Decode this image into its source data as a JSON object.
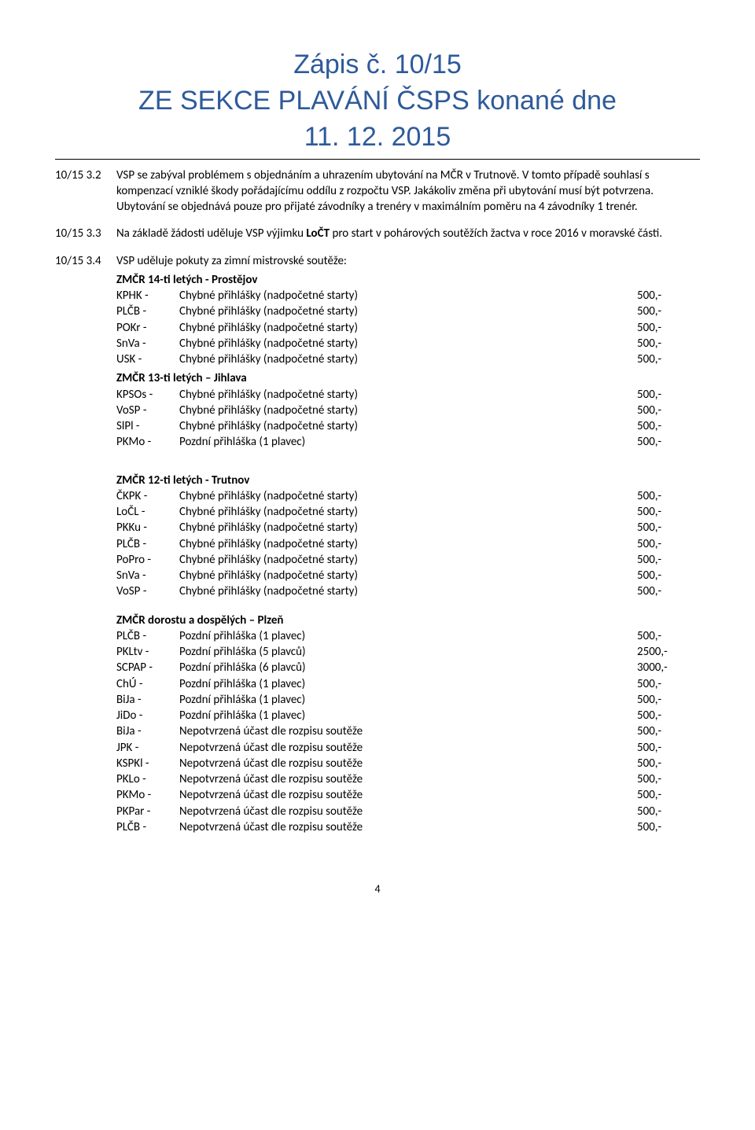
{
  "title": {
    "line1": "Zápis č. 10/15",
    "line2": "ZE SEKCE PLAVÁNÍ ČSPS konané dne",
    "line3": "11. 12. 2015"
  },
  "items": [
    {
      "num": "10/15 3.2",
      "text": "VSP se zabýval problémem s objednáním a uhrazením ubytování na MČR v Trutnově. V tomto případě souhlasí s kompenzací vzniklé škody pořádajícímu oddílu z rozpočtu VSP. Jakákoliv změna při ubytování musí být potvrzena. Ubytování se objednává pouze pro přijaté závodníky a trenéry v maximálním poměru na 4 závodníky 1 trenér."
    },
    {
      "num": "10/15 3.3",
      "text": "Na základě žádosti uděluje VSP výjimku LoČT pro start v pohárových soutěžích žactva v roce 2016 v moravské části.",
      "bold_run": "LoČT"
    },
    {
      "num": "10/15 3.4",
      "text": "VSP uděluje pokuty za zimní mistrovské soutěže:"
    }
  ],
  "groups": [
    {
      "heading": "ZMČR 14-ti letých - Prostějov",
      "indent_with_item": true,
      "rows": [
        {
          "code": "KPHK -",
          "reason": "Chybné přihlášky (nadpočetné starty)",
          "amt": "500,-"
        },
        {
          "code": "PLČB -",
          "reason": "Chybné přihlášky (nadpočetné starty)",
          "amt": "500,-"
        },
        {
          "code": "POKr -",
          "reason": "Chybné přihlášky (nadpočetné starty)",
          "amt": "500,-"
        },
        {
          "code": "SnVa -",
          "reason": "Chybné přihlášky (nadpočetné starty)",
          "amt": "500,-"
        },
        {
          "code": "USK -",
          "reason": "Chybné přihlášky (nadpočetné starty)",
          "amt": "500,-"
        }
      ]
    },
    {
      "heading": "ZMČR 13-ti letých – Jihlava",
      "rows": [
        {
          "code": "KPSOs -",
          "reason": "Chybné přihlášky (nadpočetné starty)",
          "amt": "500,-"
        },
        {
          "code": "VoSP -",
          "reason": "Chybné přihlášky (nadpočetné starty)",
          "amt": "500,-"
        },
        {
          "code": "SlPl -",
          "reason": "Chybné přihlášky (nadpočetné starty)",
          "amt": "500,-"
        },
        {
          "code": "PKMo -",
          "reason": "Pozdní přihláška (1 plavec)",
          "amt": "500,-"
        }
      ]
    },
    {
      "heading": "ZMČR 12-ti letých - Trutnov",
      "gap_before": true,
      "rows": [
        {
          "code": "ČKPK -",
          "reason": "Chybné přihlášky (nadpočetné starty)",
          "amt": "500,-"
        },
        {
          "code": "LoČL -",
          "reason": "Chybné přihlášky (nadpočetné starty)",
          "amt": "500,-"
        },
        {
          "code": "PKKu -",
          "reason": "Chybné přihlášky (nadpočetné starty)",
          "amt": "500,-"
        },
        {
          "code": "PLČB -",
          "reason": "Chybné přihlášky (nadpočetné starty)",
          "amt": "500,-"
        },
        {
          "code": "PoPro -",
          "reason": "Chybné přihlášky (nadpočetné starty)",
          "amt": "500,-"
        },
        {
          "code": "SnVa -",
          "reason": "Chybné přihlášky (nadpočetné starty)",
          "amt": "500,-"
        },
        {
          "code": "VoSP -",
          "reason": "Chybné přihlášky (nadpočetné starty)",
          "amt": "500,-"
        }
      ]
    },
    {
      "heading": "ZMČR dorostu a dospělých – Plzeň",
      "rows": [
        {
          "code": "PLČB -",
          "reason": "Pozdní přihláška (1 plavec)",
          "amt": "500,-"
        },
        {
          "code": "PKLtv -",
          "reason": "Pozdní přihláška (5 plavců)",
          "amt": "2500,-"
        },
        {
          "code": "SCPAP -",
          "reason": "Pozdní přihláška (6 plavců)",
          "amt": "3000,-"
        },
        {
          "code": "ChÚ -",
          "reason": "Pozdní přihláška (1 plavec)",
          "amt": "500,-"
        },
        {
          "code": "BiJa -",
          "reason": "Pozdní přihláška (1 plavec)",
          "amt": "500,-"
        },
        {
          "code": "JiDo -",
          "reason": "Pozdní přihláška (1 plavec)",
          "amt": "500,-"
        },
        {
          "code": "BiJa -",
          "reason": "Nepotvrzená účast dle rozpisu soutěže",
          "amt": "500,-"
        },
        {
          "code": "JPK -",
          "reason": "Nepotvrzená účast dle rozpisu soutěže",
          "amt": "500,-"
        },
        {
          "code": "KSPKl -",
          "reason": "Nepotvrzená účast dle rozpisu soutěže",
          "amt": "500,-"
        },
        {
          "code": "PKLo -",
          "reason": "Nepotvrzená účast dle rozpisu soutěže",
          "amt": "500,-"
        },
        {
          "code": "PKMo -",
          "reason": "Nepotvrzená účast dle rozpisu soutěže",
          "amt": "500,-"
        },
        {
          "code": "PKPar -",
          "reason": "Nepotvrzená účast dle rozpisu soutěže",
          "amt": "500,-"
        },
        {
          "code": "PLČB -",
          "reason": "Nepotvrzená účast dle rozpisu soutěže",
          "amt": "500,-"
        }
      ]
    }
  ],
  "page_number": "4",
  "style": {
    "title_color": "#2e5a9a",
    "title_fontsize": 34,
    "body_fontsize": 15,
    "text_color": "#000000",
    "background_color": "#ffffff",
    "rule_color": "#000000",
    "col_widths": {
      "num": 78,
      "code": 80,
      "amt": 80
    }
  }
}
